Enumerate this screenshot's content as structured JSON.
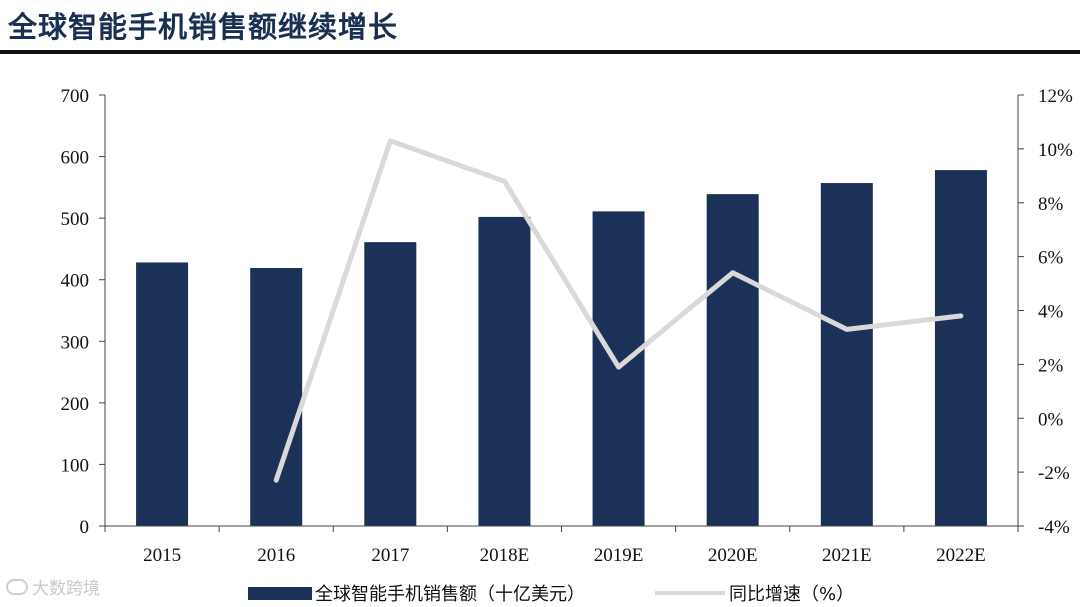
{
  "header": {
    "title": "全球智能手机销售额继续增长"
  },
  "watermark": {
    "text": "大数跨境"
  },
  "chart_data": {
    "type": "bar",
    "categories": [
      "2015",
      "2016",
      "2017",
      "2018E",
      "2019E",
      "2020E",
      "2021E",
      "2022E"
    ],
    "series": [
      {
        "name": "全球智能手机销售额（十亿美元）",
        "type": "bar",
        "axis": "left",
        "color": "#1b3157",
        "values": [
          428,
          419,
          461,
          502,
          511,
          539,
          557,
          578
        ]
      },
      {
        "name": "同比增速（%）",
        "type": "line",
        "axis": "right",
        "color": "#d9d9d9",
        "values": [
          null,
          -2.3,
          10.3,
          8.8,
          1.9,
          5.4,
          3.3,
          3.8
        ]
      }
    ],
    "y_left": {
      "min": 0,
      "max": 700,
      "ticks": [
        0,
        100,
        200,
        300,
        400,
        500,
        600,
        700
      ]
    },
    "y_right": {
      "min": -4,
      "max": 12,
      "ticks": [
        "-4%",
        "-2%",
        "0%",
        "2%",
        "4%",
        "6%",
        "8%",
        "10%",
        "12%"
      ]
    },
    "legend_position": "bottom",
    "grid": false
  }
}
